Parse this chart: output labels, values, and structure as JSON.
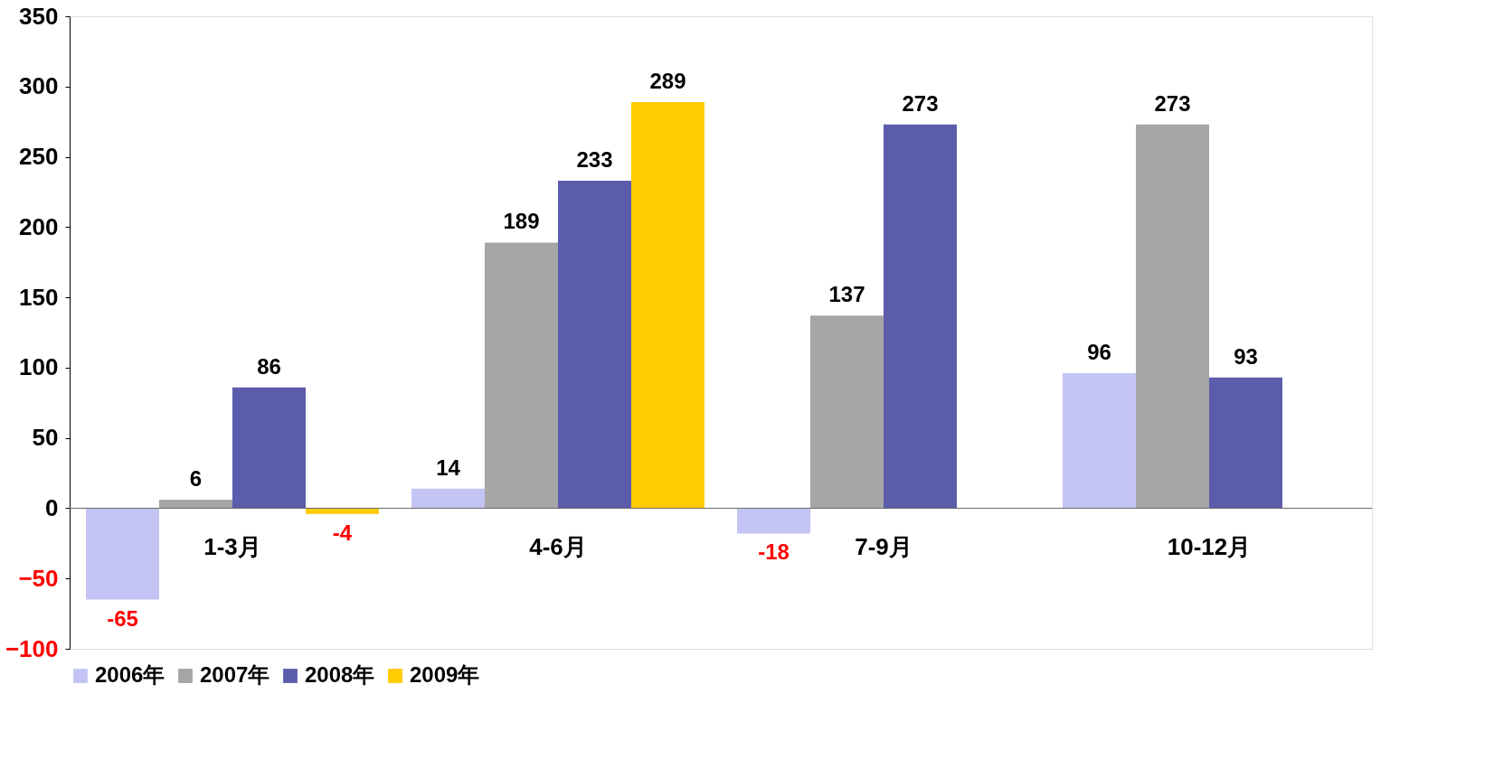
{
  "chart_data": {
    "type": "bar",
    "categories": [
      "1-3月",
      "4-6月",
      "7-9月",
      "10-12月"
    ],
    "series": [
      {
        "name": "2006年",
        "color": "#c4c4f4",
        "values": [
          -65,
          14,
          -18,
          96
        ],
        "value_labels": [
          "-65",
          "14",
          "-18",
          "96"
        ]
      },
      {
        "name": "2007年",
        "color": "#a6a6a6",
        "values": [
          6,
          189,
          137,
          273
        ],
        "value_labels": [
          "6",
          "189",
          "137",
          "273"
        ]
      },
      {
        "name": "2008年",
        "color": "#5c5cac",
        "values": [
          86,
          233,
          273,
          93
        ],
        "value_labels": [
          "86",
          "233",
          "273",
          "93"
        ]
      },
      {
        "name": "2009年",
        "color": "#ffcc00",
        "values": [
          -4,
          289,
          null,
          null
        ],
        "value_labels": [
          "-4",
          "289",
          null,
          null
        ]
      }
    ],
    "ylim": [
      -100,
      350
    ],
    "yticks": [
      -100,
      -50,
      0,
      50,
      100,
      150,
      200,
      250,
      300,
      350
    ],
    "legend": "bottom",
    "grid": false
  }
}
